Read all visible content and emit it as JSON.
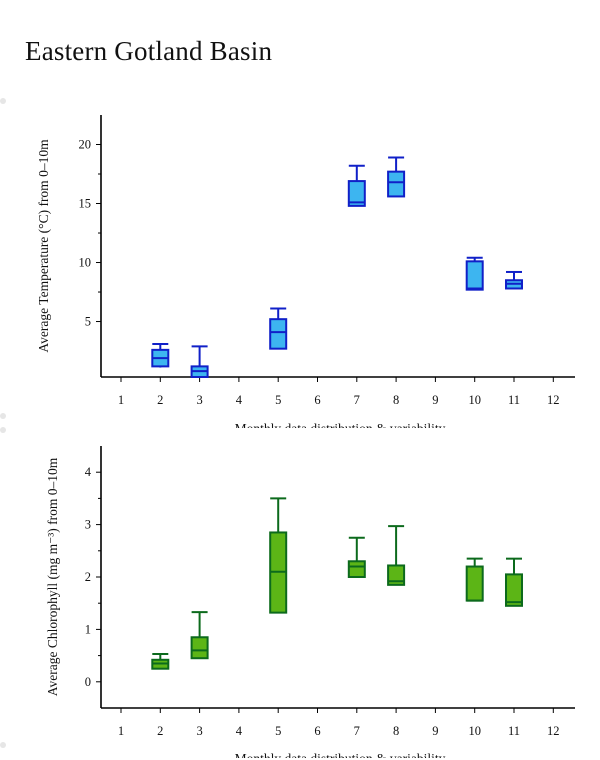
{
  "title": "Eastern Gotland Basin",
  "chart_data": [
    {
      "type": "box",
      "ylabel": "Average Temperature (°C) from 0–10m",
      "xlabel": "Monthly data distribution & variability",
      "x_ticks": [
        1,
        2,
        3,
        4,
        5,
        6,
        7,
        8,
        9,
        10,
        11,
        12
      ],
      "y_ticks": [
        5,
        10,
        15,
        20
      ],
      "ylim": [
        0.3,
        22.5
      ],
      "colors": {
        "fill": "#3db5f0",
        "stroke": "#1020c8"
      },
      "boxes": [
        {
          "month": 2,
          "min": 1.1,
          "q1": 1.2,
          "median": 1.9,
          "q3": 2.6,
          "max": 3.1
        },
        {
          "month": 3,
          "min": 0.3,
          "q1": 0.3,
          "median": 0.8,
          "q3": 1.2,
          "max": 2.9
        },
        {
          "month": 5,
          "min": 2.7,
          "q1": 2.7,
          "median": 4.1,
          "q3": 5.2,
          "max": 6.1
        },
        {
          "month": 7,
          "min": 14.8,
          "q1": 14.8,
          "median": 15.1,
          "q3": 16.9,
          "max": 18.2
        },
        {
          "month": 8,
          "min": 15.6,
          "q1": 15.6,
          "median": 16.8,
          "q3": 17.7,
          "max": 18.9
        },
        {
          "month": 10,
          "min": 7.7,
          "q1": 7.7,
          "median": 7.8,
          "q3": 10.1,
          "max": 10.4
        },
        {
          "month": 11,
          "min": 7.8,
          "q1": 7.8,
          "median": 8.2,
          "q3": 8.5,
          "max": 9.2
        }
      ]
    },
    {
      "type": "box",
      "ylabel": "Average Chlorophyll (mg m⁻³) from 0–10m",
      "xlabel": "Monthly data distribution & variability",
      "x_ticks": [
        1,
        2,
        3,
        4,
        5,
        6,
        7,
        8,
        9,
        10,
        11,
        12
      ],
      "y_ticks": [
        0,
        1,
        2,
        3,
        4
      ],
      "ylim": [
        -0.5,
        4.5
      ],
      "colors": {
        "fill": "#5cb516",
        "stroke": "#0c6a1c"
      },
      "boxes": [
        {
          "month": 2,
          "min": 0.25,
          "q1": 0.25,
          "median": 0.35,
          "q3": 0.42,
          "max": 0.53
        },
        {
          "month": 3,
          "min": 0.45,
          "q1": 0.45,
          "median": 0.6,
          "q3": 0.85,
          "max": 1.33
        },
        {
          "month": 5,
          "min": 1.32,
          "q1": 1.32,
          "median": 2.1,
          "q3": 2.85,
          "max": 3.5
        },
        {
          "month": 7,
          "min": 2.0,
          "q1": 2.0,
          "median": 2.2,
          "q3": 2.3,
          "max": 2.75
        },
        {
          "month": 8,
          "min": 1.85,
          "q1": 1.85,
          "median": 1.92,
          "q3": 2.22,
          "max": 2.97
        },
        {
          "month": 10,
          "min": 1.55,
          "q1": 1.55,
          "median": 1.55,
          "q3": 2.2,
          "max": 2.35
        },
        {
          "month": 11,
          "min": 1.45,
          "q1": 1.45,
          "median": 1.52,
          "q3": 2.05,
          "max": 2.35
        }
      ]
    }
  ]
}
